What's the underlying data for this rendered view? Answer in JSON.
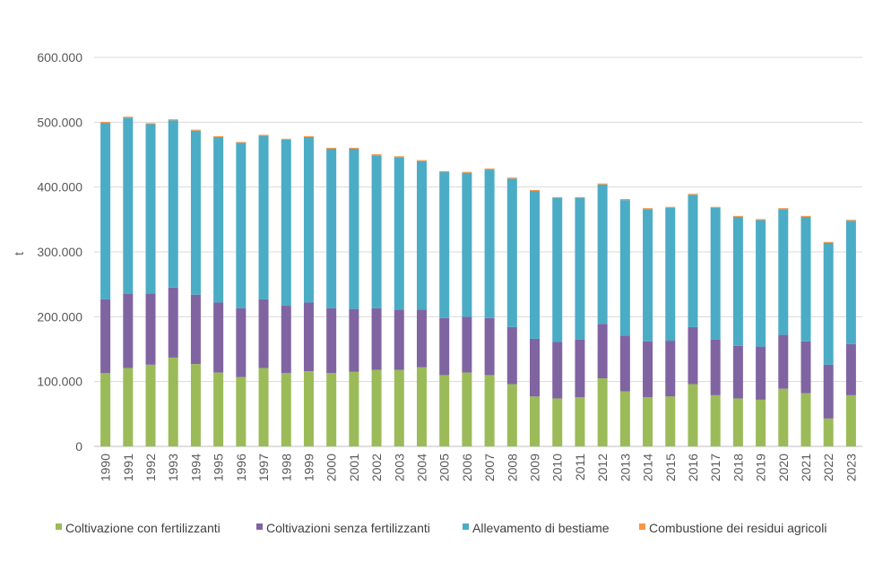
{
  "chart_data": {
    "type": "bar",
    "stacked": true,
    "title": "",
    "xlabel": "",
    "ylabel": "t",
    "ylim": [
      0,
      600000
    ],
    "ytick_values": [
      0,
      100000,
      200000,
      300000,
      400000,
      500000,
      600000
    ],
    "ytick_labels": [
      "0",
      "100.000",
      "200.000",
      "300.000",
      "400.000",
      "500.000",
      "600.000"
    ],
    "grid": true,
    "legend_position": "bottom",
    "categories": [
      "1990",
      "1991",
      "1992",
      "1993",
      "1994",
      "1995",
      "1996",
      "1997",
      "1998",
      "1999",
      "2000",
      "2001",
      "2002",
      "2003",
      "2004",
      "2005",
      "2006",
      "2007",
      "2008",
      "2009",
      "2010",
      "2011",
      "2012",
      "2013",
      "2014",
      "2015",
      "2016",
      "2017",
      "2018",
      "2019",
      "2020",
      "2021",
      "2022",
      "2023"
    ],
    "series": [
      {
        "name": "Coltivazione con fertilizzanti",
        "color": "#9bbb59",
        "values": [
          113000,
          121000,
          126000,
          137000,
          127000,
          114000,
          107000,
          121000,
          113000,
          116000,
          113000,
          115000,
          118000,
          118000,
          122000,
          110000,
          114000,
          110000,
          96000,
          77000,
          74000,
          76000,
          105000,
          85000,
          76000,
          77000,
          96000,
          79000,
          74000,
          72000,
          89000,
          82000,
          43000,
          79000
        ]
      },
      {
        "name": "Coltivazioni senza fertilizzanti",
        "color": "#8064a2",
        "values": [
          114000,
          114000,
          110000,
          108000,
          107000,
          108000,
          106000,
          106000,
          104000,
          106000,
          100000,
          97000,
          95000,
          93000,
          89000,
          88000,
          86000,
          88000,
          88000,
          89000,
          87000,
          89000,
          84000,
          86000,
          86000,
          86000,
          88000,
          86000,
          81000,
          82000,
          83000,
          80000,
          83000,
          79000
        ]
      },
      {
        "name": "Allevamento di bestiame",
        "color": "#4bacc6",
        "values": [
          272000,
          272000,
          261000,
          258000,
          253000,
          255000,
          255000,
          252000,
          256000,
          255000,
          246000,
          247000,
          236000,
          235000,
          229000,
          225000,
          222000,
          229000,
          229000,
          228000,
          222000,
          218000,
          215000,
          209000,
          204000,
          205000,
          204000,
          203000,
          199000,
          195000,
          194000,
          192000,
          188000,
          190000
        ]
      },
      {
        "name": "Combustione dei residui agricoli",
        "color": "#f79646",
        "values": [
          1500,
          1500,
          1500,
          1500,
          1500,
          1500,
          1500,
          1500,
          1500,
          1500,
          1500,
          1500,
          1500,
          1500,
          1500,
          1500,
          1500,
          1500,
          1500,
          1500,
          1500,
          1500,
          1500,
          1500,
          1500,
          1500,
          1500,
          1500,
          1500,
          1500,
          1500,
          1500,
          1500,
          1500
        ]
      }
    ]
  }
}
